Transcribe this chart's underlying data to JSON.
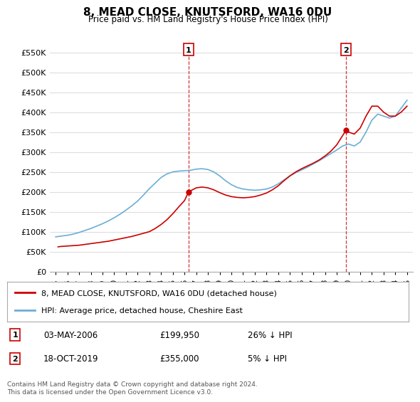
{
  "title": "8, MEAD CLOSE, KNUTSFORD, WA16 0DU",
  "subtitle": "Price paid vs. HM Land Registry's House Price Index (HPI)",
  "ylabel_ticks": [
    "£0",
    "£50K",
    "£100K",
    "£150K",
    "£200K",
    "£250K",
    "£300K",
    "£350K",
    "£400K",
    "£450K",
    "£500K",
    "£550K"
  ],
  "ytick_values": [
    0,
    50000,
    100000,
    150000,
    200000,
    250000,
    300000,
    350000,
    400000,
    450000,
    500000,
    550000
  ],
  "ylim": [
    0,
    580000
  ],
  "xlim_years": [
    1994.5,
    2025.5
  ],
  "xtick_years": [
    1995,
    1996,
    1997,
    1998,
    1999,
    2000,
    2001,
    2002,
    2003,
    2004,
    2005,
    2006,
    2007,
    2008,
    2009,
    2010,
    2011,
    2012,
    2013,
    2014,
    2015,
    2016,
    2017,
    2018,
    2019,
    2020,
    2021,
    2022,
    2023,
    2024,
    2025
  ],
  "hpi_color": "#6baed6",
  "price_color": "#cc0000",
  "marker1_color": "#cc0000",
  "marker2_color": "#cc0000",
  "vline_color": "#cc0000",
  "grid_color": "#dddddd",
  "background_color": "#ffffff",
  "legend_label_price": "8, MEAD CLOSE, KNUTSFORD, WA16 0DU (detached house)",
  "legend_label_hpi": "HPI: Average price, detached house, Cheshire East",
  "sale1_year": 2006.35,
  "sale1_price": 199950,
  "sale1_label": "1",
  "sale1_text": "03-MAY-2006",
  "sale1_pct": "26% ↓ HPI",
  "sale2_year": 2019.8,
  "sale2_price": 355000,
  "sale2_label": "2",
  "sale2_text": "18-OCT-2019",
  "sale2_pct": "5% ↓ HPI",
  "footer": "Contains HM Land Registry data © Crown copyright and database right 2024.\nThis data is licensed under the Open Government Licence v3.0.",
  "hpi_x": [
    1995,
    1995.5,
    1996,
    1996.5,
    1997,
    1997.5,
    1998,
    1998.5,
    1999,
    1999.5,
    2000,
    2000.5,
    2001,
    2001.5,
    2002,
    2002.5,
    2003,
    2003.5,
    2004,
    2004.5,
    2005,
    2005.5,
    2006,
    2006.5,
    2007,
    2007.5,
    2008,
    2008.5,
    2009,
    2009.5,
    2010,
    2010.5,
    2011,
    2011.5,
    2012,
    2012.5,
    2013,
    2013.5,
    2014,
    2014.5,
    2015,
    2015.5,
    2016,
    2016.5,
    2017,
    2017.5,
    2018,
    2018.5,
    2019,
    2019.5,
    2020,
    2020.5,
    2021,
    2021.5,
    2022,
    2022.5,
    2023,
    2023.5,
    2024,
    2024.5,
    2025
  ],
  "hpi_y": [
    87000,
    89000,
    91000,
    94000,
    98000,
    103000,
    108000,
    114000,
    120000,
    127000,
    135000,
    144000,
    154000,
    165000,
    177000,
    192000,
    208000,
    222000,
    236000,
    245000,
    250000,
    252000,
    253000,
    254000,
    257000,
    258000,
    256000,
    250000,
    240000,
    228000,
    218000,
    211000,
    207000,
    205000,
    204000,
    205000,
    207000,
    212000,
    220000,
    230000,
    240000,
    248000,
    255000,
    262000,
    270000,
    278000,
    287000,
    296000,
    305000,
    315000,
    320000,
    315000,
    325000,
    350000,
    380000,
    395000,
    390000,
    385000,
    390000,
    410000,
    430000
  ],
  "price_x": [
    1995.2,
    1995.5,
    1996,
    1996.5,
    1997,
    1997.5,
    1998,
    1998.5,
    1999,
    1999.5,
    2000,
    2000.5,
    2001,
    2001.5,
    2002,
    2002.5,
    2003,
    2003.5,
    2004,
    2004.5,
    2005,
    2005.5,
    2006,
    2006.35,
    2007,
    2007.5,
    2008,
    2008.5,
    2009,
    2009.5,
    2010,
    2010.5,
    2011,
    2011.5,
    2012,
    2012.5,
    2013,
    2013.5,
    2014,
    2014.5,
    2015,
    2015.5,
    2016,
    2016.5,
    2017,
    2017.5,
    2018,
    2018.5,
    2019,
    2019.8,
    2020,
    2020.5,
    2021,
    2021.5,
    2022,
    2022.5,
    2023,
    2023.5,
    2024,
    2024.5,
    2025
  ],
  "price_y": [
    62000,
    63000,
    64000,
    65000,
    66000,
    68000,
    70000,
    72000,
    74000,
    76000,
    79000,
    82000,
    85000,
    88000,
    92000,
    96000,
    100000,
    108000,
    118000,
    130000,
    145000,
    162000,
    178000,
    199950,
    210000,
    212000,
    210000,
    205000,
    198000,
    192000,
    188000,
    186000,
    185000,
    186000,
    188000,
    192000,
    197000,
    205000,
    215000,
    228000,
    240000,
    250000,
    258000,
    265000,
    272000,
    280000,
    290000,
    302000,
    318000,
    355000,
    350000,
    345000,
    360000,
    390000,
    415000,
    415000,
    400000,
    390000,
    390000,
    400000,
    415000
  ]
}
